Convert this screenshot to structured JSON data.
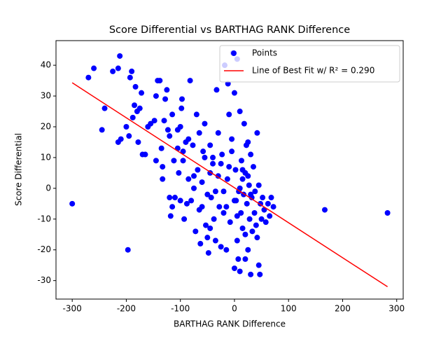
{
  "chart_data": {
    "type": "scatter",
    "title": "Score Differential vs BARTHAG RANK Difference",
    "x_label": "BARTHAG RANK Difference",
    "y_label": "Score Differential",
    "xlim": [
      -330,
      312
    ],
    "ylim": [
      -36,
      48
    ],
    "xticks": [
      -300,
      -200,
      -100,
      0,
      100,
      200,
      300
    ],
    "yticks": [
      -30,
      -20,
      -10,
      0,
      10,
      20,
      30,
      40
    ],
    "legend": "upper right",
    "series": [
      {
        "name": "Points",
        "color": "#0000ff",
        "kind": "points",
        "x": [
          -300,
          -270,
          -260,
          -245,
          -240,
          -225,
          -215,
          -212,
          -215,
          -210,
          -200,
          -197,
          -195,
          -193,
          -190,
          -188,
          -185,
          -183,
          -180,
          -178,
          -175,
          -172,
          -170,
          -165,
          -160,
          -155,
          -148,
          -145,
          -145,
          -142,
          -138,
          -135,
          -133,
          -133,
          -130,
          -128,
          -125,
          -123,
          -120,
          -120,
          -118,
          -115,
          -115,
          -112,
          -110,
          -105,
          -103,
          -100,
          -100,
          -98,
          -97,
          -95,
          -93,
          -90,
          -88,
          -85,
          -82,
          -80,
          -77,
          -75,
          -72,
          -70,
          -68,
          -65,
          -63,
          -60,
          -58,
          -55,
          -53,
          -50,
          -48,
          -45,
          -45,
          -43,
          -40,
          -38,
          -35,
          -33,
          -30,
          -28,
          -25,
          -23,
          -20,
          -18,
          -15,
          -13,
          -12,
          -10,
          -8,
          -5,
          -3,
          0,
          0,
          2,
          3,
          5,
          5,
          7,
          8,
          10,
          10,
          12,
          13,
          15,
          15,
          17,
          18,
          20,
          20,
          22,
          23,
          25,
          25,
          27,
          28,
          30,
          30,
          32,
          33,
          35,
          37,
          38,
          40,
          42,
          42,
          45,
          45,
          47,
          48,
          50,
          52,
          55,
          58,
          62,
          65,
          68,
          72,
          167,
          283,
          -60,
          -50,
          -40,
          -30,
          -20,
          -10,
          0,
          10,
          20,
          30,
          -25,
          -15,
          -5,
          5,
          15,
          25,
          -35,
          -45,
          -55,
          -65,
          -75,
          -85,
          -95,
          -105
        ],
        "values": [
          -5,
          36,
          39,
          19,
          26,
          38,
          39,
          43,
          15,
          16,
          20,
          -20,
          17,
          36,
          38,
          23,
          27,
          33,
          25,
          15,
          26,
          31,
          11,
          11,
          20,
          21,
          22,
          30,
          9,
          35,
          35,
          13,
          7,
          3,
          22,
          29,
          32,
          19,
          17,
          -3,
          -9,
          -6,
          24,
          9,
          -3,
          19,
          5,
          20,
          -4,
          26,
          29,
          12,
          -10,
          15,
          -5,
          3,
          35,
          -4,
          14,
          0,
          -14,
          24,
          6,
          -7,
          -18,
          -6,
          12,
          21,
          -12,
          -16,
          -21,
          5,
          14,
          -3,
          8,
          -10,
          -17,
          32,
          18,
          -6,
          -19,
          11,
          -1,
          40,
          -20,
          3,
          34,
          24,
          -11,
          16,
          44,
          -26,
          31,
          6,
          -4,
          42,
          -17,
          -23,
          -1,
          25,
          -27,
          -8,
          9,
          -13,
          3,
          -2,
          21,
          -23,
          -15,
          14,
          -5,
          -20,
          4,
          1,
          -10,
          -28,
          11,
          -3,
          -14,
          7,
          -8,
          -1,
          -12,
          18,
          -16,
          1,
          -25,
          -28,
          -5,
          -10,
          -3,
          -7,
          -11,
          -5,
          -9,
          -3,
          -6,
          -7,
          -8,
          2,
          -2,
          10,
          4,
          -8,
          7,
          -4,
          0,
          5,
          -2,
          8,
          -6,
          12,
          -9,
          6,
          15,
          -1,
          -13,
          10,
          18,
          4,
          16,
          9,
          13
        ]
      },
      {
        "name": "Line of Best Fit w/ R² = 0.290",
        "color": "#ff0000",
        "kind": "line",
        "x": [
          -300,
          283
        ],
        "values": [
          34.3,
          -32
        ]
      }
    ]
  }
}
